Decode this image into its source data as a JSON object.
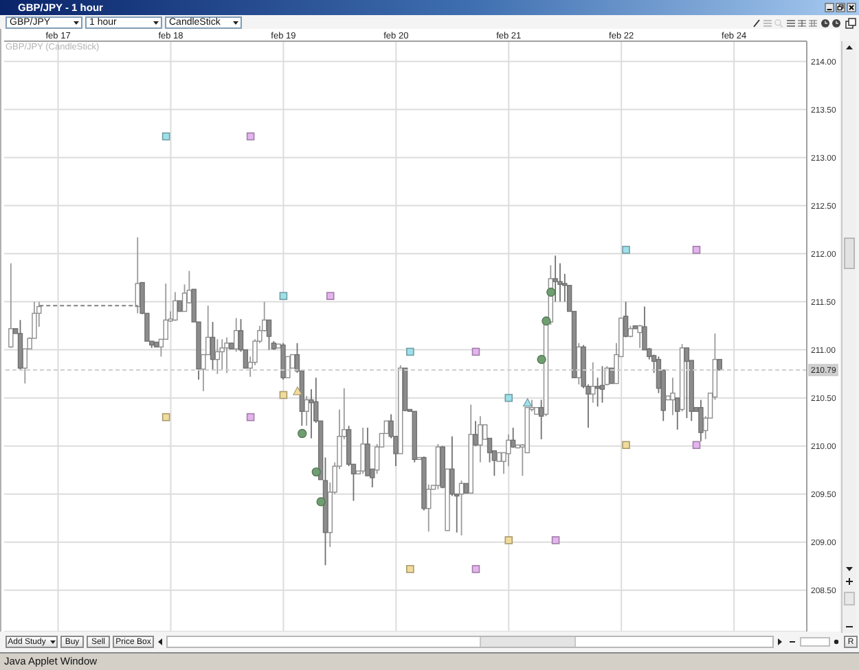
{
  "chart_data": {
    "type": "candlestick",
    "title": "GBP/JPY - 1 hour",
    "subtitle": "GBP/JPY (CandleStick)",
    "annotations": [
      "GBP/JPY",
      "1 hour",
      "CandleStick",
      "Add Study",
      "Buy",
      "Sell",
      "Price Box",
      "R",
      "Java Applet Window"
    ],
    "categories": [
      null,
      null,
      null,
      null,
      null,
      null,
      null,
      null,
      null,
      null,
      null,
      "feb 17",
      null,
      null,
      null,
      null,
      null,
      null,
      null,
      null,
      null,
      null,
      null,
      null,
      null,
      null,
      null,
      null,
      null,
      null,
      null,
      null,
      null,
      null,
      null,
      "feb 18",
      null,
      null,
      null,
      null,
      null,
      null,
      null,
      null,
      null,
      null,
      null,
      null,
      null,
      null,
      null,
      null,
      null,
      null,
      null,
      null,
      null,
      null,
      null,
      "feb 19",
      null,
      null,
      null,
      null,
      null,
      null,
      null,
      null,
      null,
      null,
      null,
      null,
      null,
      null,
      null,
      null,
      null,
      null,
      null,
      null,
      null,
      null,
      null,
      "feb 20",
      null,
      null,
      null,
      null,
      null,
      null,
      null,
      null,
      null,
      null,
      null,
      null,
      null,
      null,
      null,
      null,
      null,
      null,
      null,
      null,
      null,
      null,
      null,
      "feb 21",
      null,
      null,
      null,
      null,
      null,
      null,
      null,
      null,
      null,
      null,
      null,
      null,
      null,
      null,
      null,
      null,
      null,
      null,
      null,
      null,
      null,
      null,
      null,
      "feb 22",
      null,
      null,
      null,
      null,
      null,
      null,
      null,
      null,
      null,
      null,
      null,
      null,
      null,
      null,
      null,
      null,
      null,
      null,
      null,
      null,
      null,
      null,
      null,
      "feb 24",
      null,
      null,
      null,
      null,
      null,
      null,
      null,
      null,
      null,
      null,
      null,
      null,
      null,
      null,
      null
    ],
    "ohlc": [
      null,
      [
        211.03,
        211.9,
        211.02,
        211.22
      ],
      [
        211.22,
        211.22,
        211.17,
        211.17
      ],
      [
        211.17,
        211.31,
        210.79,
        210.81
      ],
      [
        210.81,
        211.01,
        210.65,
        211.01
      ],
      [
        211.01,
        211.13,
        211.01,
        211.12
      ],
      [
        211.12,
        211.5,
        211.12,
        211.38
      ],
      [
        211.38,
        211.5,
        211.24,
        211.45
      ],
      null,
      null,
      null,
      null,
      null,
      null,
      null,
      null,
      null,
      null,
      null,
      null,
      null,
      null,
      null,
      null,
      null,
      null,
      null,
      null,
      [
        211.45,
        212.17,
        211.38,
        211.69
      ],
      [
        211.7,
        211.7,
        211.37,
        211.38
      ],
      [
        211.38,
        211.38,
        211.09,
        211.09
      ],
      [
        211.09,
        211.09,
        211.02,
        211.05
      ],
      [
        211.08,
        211.08,
        211.03,
        211.03
      ],
      [
        211.03,
        211.11,
        210.93,
        211.11
      ],
      [
        211.11,
        211.69,
        211.11,
        211.31
      ],
      [
        211.3,
        211.4,
        211.29,
        211.32
      ],
      [
        211.31,
        211.6,
        211.3,
        211.51
      ],
      [
        211.51,
        211.51,
        211.4,
        211.4
      ],
      [
        211.4,
        211.68,
        211.4,
        211.59
      ],
      [
        211.49,
        211.82,
        211.48,
        211.62
      ],
      [
        211.63,
        211.63,
        211.29,
        211.29
      ],
      [
        211.29,
        211.29,
        210.69,
        210.8
      ],
      [
        210.8,
        210.95,
        210.57,
        210.95
      ],
      [
        210.95,
        211.46,
        210.95,
        211.13
      ],
      [
        211.13,
        211.29,
        210.79,
        210.9
      ],
      [
        210.9,
        211.11,
        210.75,
        210.98
      ],
      [
        210.98,
        211.11,
        210.79,
        211.02
      ],
      [
        211.02,
        211.13,
        210.76,
        211.07
      ],
      [
        211.07,
        211.07,
        211.01,
        211.01
      ],
      [
        211.01,
        211.33,
        210.98,
        211.2
      ],
      [
        211.2,
        211.32,
        210.98,
        211.0
      ],
      [
        211.0,
        211.0,
        210.81,
        210.81
      ],
      [
        210.81,
        210.93,
        210.72,
        210.87
      ],
      [
        210.87,
        211.11,
        210.84,
        211.09
      ],
      [
        211.09,
        211.25,
        211.07,
        211.2
      ],
      [
        211.2,
        211.5,
        211.19,
        211.31
      ],
      [
        211.31,
        211.31,
        211.0,
        211.14
      ],
      [
        211.07,
        211.09,
        211.0,
        211.01
      ],
      [
        211.02,
        211.06,
        211.02,
        211.06
      ],
      [
        211.05,
        211.07,
        210.69,
        210.71
      ],
      [
        210.71,
        210.93,
        210.71,
        210.93
      ],
      [
        210.81,
        210.95,
        210.81,
        210.95
      ],
      [
        210.95,
        211.07,
        210.76,
        210.78
      ],
      [
        210.78,
        210.78,
        210.21,
        210.36
      ],
      [
        210.36,
        210.52,
        210.21,
        210.48
      ],
      [
        210.48,
        210.59,
        210.08,
        210.45
      ],
      [
        210.46,
        210.71,
        210.24,
        210.26
      ],
      [
        210.26,
        210.26,
        209.65,
        209.65
      ],
      [
        209.64,
        209.88,
        208.76,
        209.1
      ],
      [
        209.1,
        209.62,
        208.95,
        209.52
      ],
      [
        209.52,
        209.83,
        209.5,
        209.79
      ],
      [
        209.79,
        210.38,
        209.76,
        210.1
      ],
      [
        210.1,
        210.6,
        210.07,
        210.17
      ],
      [
        210.17,
        210.21,
        209.79,
        209.81
      ],
      [
        209.81,
        209.81,
        209.43,
        209.71
      ],
      [
        209.71,
        209.74,
        209.71,
        209.74
      ],
      [
        209.74,
        210.19,
        209.71,
        210.02
      ],
      [
        210.02,
        210.19,
        209.69,
        209.69
      ],
      [
        209.76,
        209.76,
        209.57,
        209.67
      ],
      [
        209.75,
        210.02,
        209.71,
        209.99
      ],
      [
        209.99,
        210.13,
        209.99,
        210.13
      ],
      [
        210.13,
        210.26,
        210.13,
        210.26
      ],
      [
        210.26,
        210.33,
        210.08,
        210.1
      ],
      [
        210.1,
        210.1,
        209.79,
        209.92
      ],
      [
        209.92,
        210.84,
        209.92,
        210.81
      ],
      [
        210.81,
        210.81,
        210.36,
        210.37
      ],
      [
        210.38,
        210.38,
        210.36,
        210.36
      ],
      [
        210.36,
        210.36,
        209.83,
        209.86
      ],
      [
        209.86,
        209.88,
        209.86,
        209.88
      ],
      [
        209.88,
        209.89,
        209.33,
        209.35
      ],
      [
        209.35,
        209.6,
        209.11,
        209.55
      ],
      [
        209.55,
        209.59,
        209.55,
        209.59
      ],
      [
        209.59,
        210.02,
        209.55,
        209.99
      ],
      [
        209.99,
        210.0,
        209.56,
        209.57
      ],
      [
        209.12,
        209.76,
        209.12,
        209.76
      ],
      [
        209.76,
        210.1,
        209.48,
        209.5
      ],
      [
        209.5,
        209.5,
        209.1,
        209.48
      ],
      [
        209.5,
        209.64,
        209.07,
        209.61
      ],
      [
        209.61,
        209.61,
        209.51,
        209.51
      ],
      [
        209.51,
        210.43,
        209.51,
        210.12
      ],
      [
        210.12,
        210.26,
        210.0,
        210.01
      ],
      [
        210.01,
        210.31,
        209.83,
        210.22
      ],
      [
        210.07,
        210.22,
        210.07,
        210.22
      ],
      [
        210.08,
        210.08,
        209.83,
        209.93
      ],
      [
        209.95,
        209.95,
        209.69,
        209.85
      ],
      [
        209.84,
        209.93,
        209.84,
        209.93
      ],
      [
        209.84,
        209.93,
        209.71,
        209.93
      ],
      [
        209.92,
        210.12,
        209.79,
        210.06
      ],
      [
        210.06,
        210.19,
        209.98,
        209.99
      ],
      [
        209.98,
        210.01,
        209.98,
        210.01
      ],
      [
        209.99,
        210.02,
        209.69,
        210.01
      ],
      [
        209.93,
        210.4,
        209.93,
        210.4
      ],
      [
        210.38,
        210.48,
        210.36,
        210.4
      ],
      [
        210.33,
        210.4,
        210.33,
        210.4
      ],
      [
        210.4,
        210.48,
        210.07,
        210.31
      ],
      [
        210.33,
        211.29,
        210.31,
        211.29
      ],
      [
        211.29,
        211.88,
        211.26,
        211.74
      ],
      [
        211.74,
        211.98,
        211.5,
        211.71
      ],
      [
        211.71,
        211.9,
        211.5,
        211.68
      ],
      [
        211.69,
        211.79,
        211.5,
        211.67
      ],
      [
        211.67,
        211.67,
        211.4,
        211.4
      ],
      [
        211.4,
        211.4,
        210.71,
        210.71
      ],
      [
        210.71,
        211.07,
        210.64,
        211.03
      ],
      [
        211.03,
        211.05,
        210.6,
        210.62
      ],
      [
        210.62,
        210.64,
        210.19,
        210.54
      ],
      [
        210.54,
        210.87,
        210.45,
        210.62
      ],
      [
        210.62,
        210.71,
        210.41,
        210.6
      ],
      [
        210.63,
        210.83,
        210.45,
        210.59
      ],
      [
        210.64,
        210.83,
        210.63,
        210.81
      ],
      [
        210.81,
        210.81,
        210.65,
        210.65
      ],
      [
        210.65,
        211.07,
        210.65,
        210.95
      ],
      [
        210.93,
        211.33,
        210.93,
        211.33
      ],
      [
        211.35,
        211.5,
        211.13,
        211.14
      ],
      [
        211.14,
        211.25,
        211.13,
        211.22
      ],
      [
        211.25,
        211.25,
        211.22,
        211.22
      ],
      [
        211.18,
        211.26,
        211.02,
        211.25
      ],
      [
        211.24,
        211.45,
        211.0,
        211.0
      ],
      [
        211.01,
        211.02,
        210.9,
        210.93
      ],
      [
        210.94,
        210.95,
        210.76,
        210.88
      ],
      [
        210.9,
        210.93,
        210.55,
        210.6
      ],
      [
        210.79,
        210.79,
        210.26,
        210.37
      ],
      [
        210.48,
        210.52,
        210.48,
        210.52
      ],
      [
        210.48,
        210.71,
        210.32,
        210.55
      ],
      [
        210.5,
        210.5,
        210.17,
        210.36
      ],
      [
        210.38,
        211.06,
        210.36,
        211.02
      ],
      [
        211.02,
        211.02,
        210.29,
        210.88
      ],
      [
        210.89,
        210.89,
        210.26,
        210.36
      ],
      [
        210.4,
        210.4,
        210.36,
        210.36
      ],
      [
        210.4,
        210.48,
        210.05,
        210.14
      ],
      [
        210.16,
        210.31,
        210.07,
        210.29
      ],
      [
        210.29,
        210.55,
        210.29,
        210.55
      ],
      [
        210.51,
        211.17,
        210.48,
        210.9
      ],
      [
        210.9,
        210.9,
        210.79,
        210.79
      ],
      null,
      null,
      null,
      null,
      null,
      null,
      null,
      null,
      null,
      null,
      null,
      null,
      null,
      null,
      null,
      null,
      null,
      null
    ],
    "series": [
      {
        "type": "scatter",
        "color": "#9ee0ea",
        "marker": "square",
        "values": [
          null,
          null,
          null,
          null,
          null,
          null,
          null,
          null,
          null,
          null,
          null,
          null,
          null,
          null,
          null,
          null,
          null,
          null,
          null,
          null,
          null,
          null,
          null,
          null,
          null,
          null,
          null,
          null,
          null,
          null,
          null,
          null,
          null,
          null,
          213.22,
          null,
          null,
          null,
          null,
          null,
          null,
          null,
          null,
          null,
          null,
          null,
          null,
          null,
          null,
          null,
          null,
          null,
          null,
          null,
          null,
          null,
          null,
          null,
          null,
          211.56,
          null,
          null,
          null,
          null,
          null,
          null,
          null,
          null,
          null,
          null,
          null,
          null,
          null,
          null,
          null,
          null,
          null,
          null,
          null,
          null,
          null,
          null,
          null,
          null,
          null,
          null,
          210.98,
          null,
          null,
          null,
          null,
          null,
          null,
          null,
          null,
          null,
          null,
          null,
          null,
          null,
          null,
          null,
          null,
          null,
          null,
          null,
          null,
          210.5,
          null,
          null,
          null,
          null,
          null,
          null,
          null,
          null,
          null,
          null,
          null,
          null,
          null,
          null,
          null,
          null,
          null,
          null,
          null,
          null,
          null,
          null,
          null,
          null,
          212.04,
          null,
          null,
          null,
          null,
          null,
          null,
          null,
          null,
          null,
          null,
          null,
          null,
          null,
          null,
          null,
          null,
          null,
          null,
          null,
          null,
          null,
          null,
          null,
          null,
          null,
          null,
          null,
          null,
          null,
          null,
          null,
          null,
          null,
          null,
          null,
          null,
          null,
          null
        ]
      },
      {
        "type": "scatter",
        "color": "#e4b4ee",
        "marker": "square",
        "values": [
          null,
          null,
          null,
          null,
          null,
          null,
          null,
          null,
          null,
          null,
          null,
          null,
          null,
          null,
          null,
          null,
          null,
          null,
          null,
          null,
          null,
          null,
          null,
          null,
          null,
          null,
          null,
          null,
          null,
          null,
          null,
          null,
          null,
          null,
          null,
          null,
          null,
          null,
          null,
          null,
          null,
          null,
          null,
          null,
          null,
          null,
          null,
          null,
          null,
          null,
          null,
          null,
          213.22,
          null,
          null,
          null,
          null,
          null,
          null,
          null,
          null,
          null,
          null,
          null,
          null,
          null,
          null,
          null,
          null,
          211.56,
          null,
          null,
          null,
          null,
          null,
          null,
          null,
          null,
          null,
          null,
          null,
          null,
          null,
          null,
          null,
          null,
          null,
          null,
          null,
          null,
          null,
          null,
          null,
          null,
          null,
          null,
          null,
          null,
          null,
          null,
          210.98,
          null,
          null,
          null,
          null,
          null,
          null,
          null,
          null,
          null,
          null,
          null,
          null,
          null,
          null,
          null,
          null,
          null,
          null,
          null,
          null,
          null,
          null,
          null,
          null,
          null,
          null,
          null,
          null,
          null,
          null,
          null,
          null,
          null,
          null,
          null,
          null,
          null,
          null,
          null,
          null,
          null,
          null,
          null,
          null,
          null,
          null,
          212.04,
          null,
          null,
          null,
          null,
          null,
          null,
          null,
          null,
          null,
          null,
          null,
          null,
          null,
          null,
          null,
          null,
          null,
          null,
          null,
          null,
          null,
          null,
          null
        ]
      },
      {
        "type": "scatter",
        "color": "#e4b4ee",
        "marker": "square",
        "values": [
          null,
          null,
          null,
          null,
          null,
          null,
          null,
          null,
          null,
          null,
          null,
          null,
          null,
          null,
          null,
          null,
          null,
          null,
          null,
          null,
          null,
          null,
          null,
          null,
          null,
          null,
          null,
          null,
          null,
          null,
          null,
          null,
          null,
          null,
          null,
          null,
          null,
          null,
          null,
          null,
          null,
          null,
          null,
          null,
          null,
          null,
          null,
          null,
          null,
          null,
          null,
          null,
          210.3,
          null,
          null,
          null,
          null,
          null,
          null,
          null,
          null,
          null,
          null,
          null,
          null,
          null,
          null,
          null,
          null,
          null,
          null,
          null,
          null,
          null,
          null,
          null,
          null,
          null,
          null,
          null,
          null,
          null,
          null,
          null,
          null,
          null,
          null,
          null,
          null,
          null,
          null,
          null,
          null,
          null,
          null,
          null,
          null,
          null,
          null,
          null,
          208.72,
          null,
          null,
          null,
          null,
          null,
          null,
          null,
          null,
          null,
          null,
          null,
          null,
          null,
          null,
          null,
          null,
          209.02,
          null,
          null,
          null,
          null,
          null,
          null,
          null,
          null,
          null,
          null,
          null,
          null,
          null,
          null,
          null,
          null,
          null,
          null,
          null,
          null,
          null,
          null,
          null,
          null,
          null,
          null,
          null,
          null,
          null,
          210.01,
          null,
          null,
          null,
          null,
          null,
          null,
          null,
          null,
          null,
          null,
          null,
          null,
          null,
          null,
          null,
          null,
          null,
          null,
          null,
          null,
          null,
          null,
          null
        ]
      },
      {
        "type": "scatter",
        "color": "#f2dc9c",
        "marker": "square",
        "values": [
          null,
          null,
          null,
          null,
          null,
          null,
          null,
          null,
          null,
          null,
          null,
          null,
          null,
          null,
          null,
          null,
          null,
          null,
          null,
          null,
          null,
          null,
          null,
          null,
          null,
          null,
          null,
          null,
          null,
          null,
          null,
          null,
          null,
          null,
          210.3,
          null,
          null,
          null,
          null,
          null,
          null,
          null,
          null,
          null,
          null,
          null,
          null,
          null,
          null,
          null,
          null,
          null,
          null,
          null,
          null,
          null,
          null,
          null,
          null,
          210.53,
          null,
          null,
          null,
          null,
          null,
          null,
          null,
          null,
          null,
          null,
          null,
          null,
          null,
          null,
          null,
          null,
          null,
          null,
          null,
          null,
          null,
          null,
          null,
          null,
          null,
          null,
          208.72,
          null,
          null,
          null,
          null,
          null,
          null,
          null,
          null,
          null,
          null,
          null,
          null,
          null,
          null,
          null,
          null,
          null,
          null,
          null,
          null,
          209.02,
          null,
          null,
          null,
          null,
          null,
          null,
          null,
          null,
          null,
          null,
          null,
          null,
          null,
          null,
          null,
          null,
          null,
          null,
          null,
          null,
          null,
          null,
          null,
          null,
          210.01,
          null,
          null,
          null,
          null,
          null,
          null,
          null,
          null,
          null,
          null,
          null,
          null,
          null,
          null,
          null,
          null,
          null,
          null,
          null,
          null,
          null,
          null,
          null,
          null,
          null,
          null,
          null,
          null,
          null,
          null,
          null,
          null,
          null,
          null,
          null,
          null,
          null,
          null
        ]
      },
      {
        "type": "scatter",
        "color": "#6f9f70",
        "marker": "circle",
        "values": [
          null,
          null,
          null,
          null,
          null,
          null,
          null,
          null,
          null,
          null,
          null,
          null,
          null,
          null,
          null,
          null,
          null,
          null,
          null,
          null,
          null,
          null,
          null,
          null,
          null,
          null,
          null,
          null,
          null,
          null,
          null,
          null,
          null,
          null,
          null,
          null,
          null,
          null,
          null,
          null,
          null,
          null,
          null,
          null,
          null,
          null,
          null,
          null,
          null,
          null,
          null,
          null,
          null,
          null,
          null,
          null,
          null,
          null,
          null,
          null,
          null,
          null,
          null,
          210.13,
          null,
          null,
          209.73,
          209.42,
          null,
          null,
          null,
          null,
          null,
          null,
          null,
          null,
          null,
          null,
          null,
          null,
          null,
          null,
          null,
          null,
          null,
          null,
          null,
          null,
          null,
          null,
          null,
          null,
          null,
          null,
          null,
          null,
          null,
          null,
          null,
          null,
          null,
          null,
          null,
          null,
          null,
          null,
          null,
          null,
          null,
          null,
          null,
          null,
          null,
          null,
          210.9,
          211.3,
          211.6,
          null,
          null,
          null,
          null,
          null,
          null,
          null,
          null,
          null,
          null,
          null,
          null,
          null,
          null,
          null,
          null,
          null,
          null,
          null,
          null,
          null,
          null,
          null,
          null,
          null,
          null,
          null,
          null,
          null,
          null,
          null,
          null,
          null,
          null,
          null,
          null,
          null,
          null,
          null,
          null,
          null,
          null,
          null,
          null,
          null,
          null,
          null,
          null,
          null,
          null,
          null,
          null,
          null,
          null
        ]
      },
      {
        "type": "scatter",
        "color": "#f2dc9c",
        "marker": "triangle",
        "values": [
          null,
          null,
          null,
          null,
          null,
          null,
          null,
          null,
          null,
          null,
          null,
          null,
          null,
          null,
          null,
          null,
          null,
          null,
          null,
          null,
          null,
          null,
          null,
          null,
          null,
          null,
          null,
          null,
          null,
          null,
          null,
          null,
          null,
          null,
          null,
          null,
          null,
          null,
          null,
          null,
          null,
          null,
          null,
          null,
          null,
          null,
          null,
          null,
          null,
          null,
          null,
          null,
          null,
          null,
          null,
          null,
          null,
          null,
          null,
          null,
          null,
          null,
          210.57,
          null,
          null,
          null,
          null,
          null,
          null,
          null,
          null,
          null,
          null,
          null,
          null,
          null,
          null,
          null,
          null,
          null,
          null,
          null,
          null,
          null,
          null,
          null,
          null,
          null,
          null,
          null,
          null,
          null,
          null,
          null,
          null,
          null,
          null,
          null,
          null,
          null,
          null,
          null,
          null,
          null,
          null,
          null,
          null,
          null,
          null,
          null,
          null,
          null,
          null,
          null,
          null,
          null,
          null,
          null,
          null,
          null,
          null,
          null,
          null,
          null,
          null,
          null,
          null,
          null,
          null,
          null,
          null,
          null,
          null,
          null,
          null,
          null,
          null,
          null,
          null,
          null,
          null,
          null,
          null,
          null,
          null,
          null,
          null,
          null,
          null,
          null,
          null,
          null,
          null,
          null,
          null,
          null,
          null,
          null,
          null,
          null,
          null,
          null,
          null,
          null,
          null,
          null,
          null,
          null,
          null,
          null,
          null
        ]
      },
      {
        "type": "scatter",
        "color": "#9ee0ea",
        "marker": "triangle",
        "values": [
          null,
          null,
          null,
          null,
          null,
          null,
          null,
          null,
          null,
          null,
          null,
          null,
          null,
          null,
          null,
          null,
          null,
          null,
          null,
          null,
          null,
          null,
          null,
          null,
          null,
          null,
          null,
          null,
          null,
          null,
          null,
          null,
          null,
          null,
          null,
          null,
          null,
          null,
          null,
          null,
          null,
          null,
          null,
          null,
          null,
          null,
          null,
          null,
          null,
          null,
          null,
          null,
          null,
          null,
          null,
          null,
          null,
          null,
          null,
          null,
          null,
          null,
          null,
          null,
          null,
          null,
          null,
          null,
          null,
          null,
          null,
          null,
          null,
          null,
          null,
          null,
          null,
          null,
          null,
          null,
          null,
          null,
          null,
          null,
          null,
          null,
          null,
          null,
          null,
          null,
          null,
          null,
          null,
          null,
          null,
          null,
          null,
          null,
          null,
          null,
          null,
          null,
          null,
          null,
          null,
          null,
          null,
          null,
          null,
          null,
          null,
          210.45,
          null,
          null,
          null,
          null,
          null,
          null,
          null,
          null,
          null,
          null,
          null,
          null,
          null,
          null,
          null,
          null,
          null,
          null,
          null,
          null,
          null,
          null,
          null,
          null,
          null,
          null,
          null,
          null,
          null,
          null,
          null,
          null,
          null,
          null,
          null,
          null,
          null,
          null,
          null,
          null,
          null,
          null,
          null,
          null,
          null,
          null,
          null,
          null,
          null,
          null,
          null,
          null,
          null,
          null,
          null,
          null,
          null,
          null,
          null
        ]
      },
      {
        "type": "line",
        "color": "#808080",
        "line_style": "dashed",
        "marker": "none",
        "values": [
          null,
          null,
          null,
          null,
          null,
          null,
          null,
          211.46,
          211.46,
          211.46,
          211.46,
          211.46,
          211.46,
          211.46,
          211.46,
          211.46,
          211.46,
          211.46,
          211.46,
          211.46,
          211.46,
          211.46,
          211.46,
          211.46,
          211.46,
          211.46,
          211.46,
          211.46,
          211.46,
          null,
          null,
          null,
          null,
          null,
          null,
          null,
          null,
          null,
          null,
          null,
          null,
          null,
          null,
          null,
          null,
          null,
          null,
          null,
          null,
          null,
          null,
          null,
          null,
          null,
          null,
          null,
          null,
          null,
          null,
          null,
          null,
          null,
          null,
          null,
          null,
          null,
          null,
          null,
          null,
          null,
          null,
          null,
          null,
          null,
          null,
          null,
          null,
          null,
          null,
          null,
          null,
          null,
          null,
          null,
          null,
          null,
          null,
          null,
          null,
          null,
          null,
          null,
          null,
          null,
          null,
          null,
          null,
          null,
          null,
          null,
          null,
          null,
          null,
          null,
          null,
          null,
          null,
          null,
          null,
          null,
          null,
          null,
          null,
          null,
          null,
          null,
          null,
          null,
          null,
          null,
          null,
          null,
          null,
          null,
          null,
          null,
          null,
          null,
          null,
          null,
          null,
          null,
          null,
          null,
          null,
          null,
          null,
          null,
          null,
          null,
          null,
          null,
          null,
          null,
          null,
          null,
          null,
          null,
          null,
          null,
          null,
          null,
          null,
          null,
          null,
          null,
          null,
          null,
          null,
          null,
          null,
          null,
          null,
          null,
          null,
          null,
          null,
          null,
          null,
          null,
          null
        ]
      }
    ],
    "ref_lines": [
      {
        "axis": "y",
        "value": 210.79,
        "label": "210.79",
        "color": "#cfcfcf",
        "line_style": "dashed"
      }
    ],
    "ylim": [
      208.07,
      214.21
    ],
    "yticks": [
      {
        "value": 208.5,
        "label": "208.50"
      },
      {
        "value": 209,
        "label": "209.00"
      },
      {
        "value": 209.5,
        "label": "209.50"
      },
      {
        "value": 210,
        "label": "210.00"
      },
      {
        "value": 210.5,
        "label": "210.50"
      },
      {
        "value": 211,
        "label": "211.00"
      },
      {
        "value": 211.5,
        "label": "211.50"
      },
      {
        "value": 212,
        "label": "212.00"
      },
      {
        "value": 212.5,
        "label": "212.50"
      },
      {
        "value": 213,
        "label": "213.00"
      },
      {
        "value": 213.5,
        "label": "213.50"
      },
      {
        "value": 214,
        "label": "214.00"
      }
    ],
    "grid": true
  }
}
